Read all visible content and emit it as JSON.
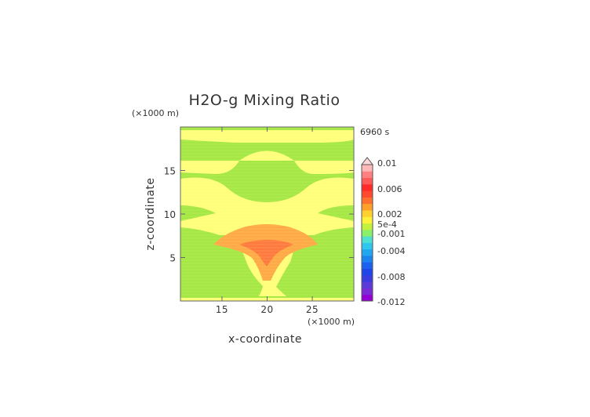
{
  "chart_data": {
    "type": "heatmap",
    "title": "H2O-g Mixing Ratio",
    "xlabel": "x-coordinate",
    "ylabel": "z-coordinate",
    "x_unit": "(×1000 m)",
    "y_unit": "(×1000 m)",
    "time_label": "6960 s",
    "xlim": [
      10.4,
      29.6
    ],
    "ylim": [
      0,
      20
    ],
    "x_ticks": [
      "15",
      "20",
      "25"
    ],
    "y_ticks": [
      "5",
      "10",
      "15"
    ],
    "grid": false,
    "colorbar": {
      "tick_labels": [
        "0.01",
        "0.006",
        "0.002",
        "5e-4",
        "-0.001",
        "-0.004",
        "-0.008",
        "-0.012"
      ],
      "colors": [
        "#9400d3",
        "#7a2bd6",
        "#5a3bd8",
        "#3a3ce0",
        "#1f44e8",
        "#1a62ee",
        "#1c84ef",
        "#22a6ef",
        "#31c6ee",
        "#4fe0d0",
        "#8af06a",
        "#c4f03e",
        "#fff03c",
        "#ffd030",
        "#ffa02a",
        "#ff7030",
        "#ff4a30",
        "#ff2a2a",
        "#ff5a5a",
        "#ff8080",
        "#ffb8b8"
      ],
      "fill_regions": {
        "background": "#a6e843",
        "yellow": "#ffff7a",
        "orange": "#ffaa44",
        "red_orange": "#ff7a3c"
      }
    }
  }
}
